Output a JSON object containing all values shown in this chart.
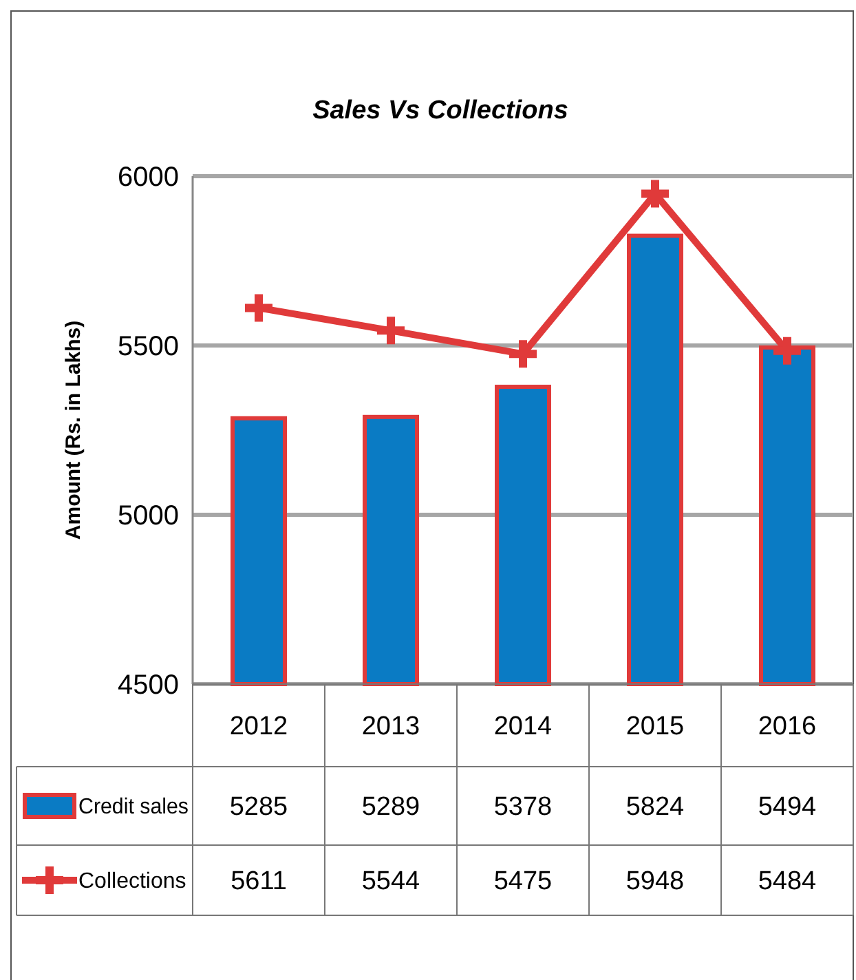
{
  "chart_data": {
    "type": "bar",
    "title": "Sales Vs Collections",
    "ylabel": "Amount (Rs. in Lakhs)",
    "categories": [
      "2012",
      "2013",
      "2014",
      "2015",
      "2016"
    ],
    "series": [
      {
        "name": "Credit sales",
        "color": "#0a7bc4",
        "values": [
          5285,
          5289,
          5378,
          5824,
          5494
        ]
      },
      {
        "name": "Collections",
        "type": "line",
        "color": "#e03a3a",
        "values": [
          5611,
          5544,
          5475,
          5948,
          5484
        ]
      }
    ],
    "ylim": [
      4500,
      6000
    ],
    "yticks": [
      4500,
      5000,
      5500,
      6000
    ],
    "grid": "y",
    "data_labels": true,
    "legend": "bottom left",
    "marker": "cross"
  }
}
